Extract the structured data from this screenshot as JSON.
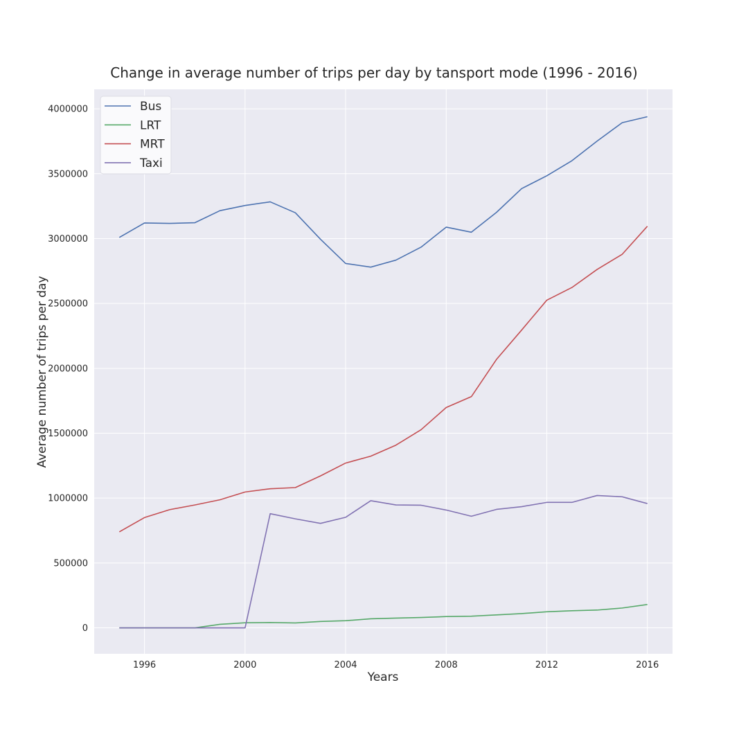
{
  "chart_data": {
    "type": "line",
    "title": "Change in average number of trips per day by tansport mode (1996 - 2016)",
    "xlabel": "Years",
    "ylabel": "Average number of trips per day",
    "xlim": [
      1994.0,
      2017.0
    ],
    "ylim": [
      -200000,
      4150000
    ],
    "xticks": [
      1996,
      2000,
      2004,
      2008,
      2012,
      2016
    ],
    "yticks": [
      0,
      500000,
      1000000,
      1500000,
      2000000,
      2500000,
      3000000,
      3500000,
      4000000
    ],
    "grid": true,
    "legend_position": "top-left",
    "background": "#eaeaf2",
    "x": [
      1995,
      1996,
      1997,
      1998,
      1999,
      2000,
      2001,
      2002,
      2003,
      2004,
      2005,
      2006,
      2007,
      2008,
      2009,
      2010,
      2011,
      2012,
      2013,
      2014,
      2015,
      2016
    ],
    "series": [
      {
        "name": "Bus",
        "color": "#4c72b0",
        "values": [
          3009000,
          3120000,
          3117000,
          3122000,
          3215000,
          3255000,
          3283000,
          3199000,
          2995000,
          2808000,
          2780000,
          2834000,
          2934000,
          3088000,
          3049000,
          3202000,
          3385000,
          3484000,
          3600000,
          3751000,
          3893000,
          3939000
        ]
      },
      {
        "name": "LRT",
        "color": "#55a868",
        "values": [
          0,
          0,
          0,
          0,
          27000,
          39000,
          41000,
          38000,
          49000,
          55000,
          70000,
          75000,
          80000,
          87000,
          90000,
          100000,
          110000,
          124000,
          132000,
          137000,
          153000,
          180000
        ]
      },
      {
        "name": "MRT",
        "color": "#c44e52",
        "values": [
          740000,
          850000,
          911000,
          947000,
          987000,
          1047000,
          1072000,
          1081000,
          1171000,
          1270000,
          1323000,
          1408000,
          1527000,
          1698000,
          1782000,
          2069000,
          2295000,
          2525000,
          2623000,
          2762000,
          2879000,
          3095000
        ]
      },
      {
        "name": "Taxi",
        "color": "#8172b2",
        "values": [
          0,
          0,
          0,
          0,
          0,
          0,
          880000,
          840000,
          805000,
          852000,
          980000,
          947000,
          945000,
          908000,
          860000,
          913000,
          934000,
          967000,
          967000,
          1020000,
          1010000,
          958000
        ]
      }
    ]
  }
}
